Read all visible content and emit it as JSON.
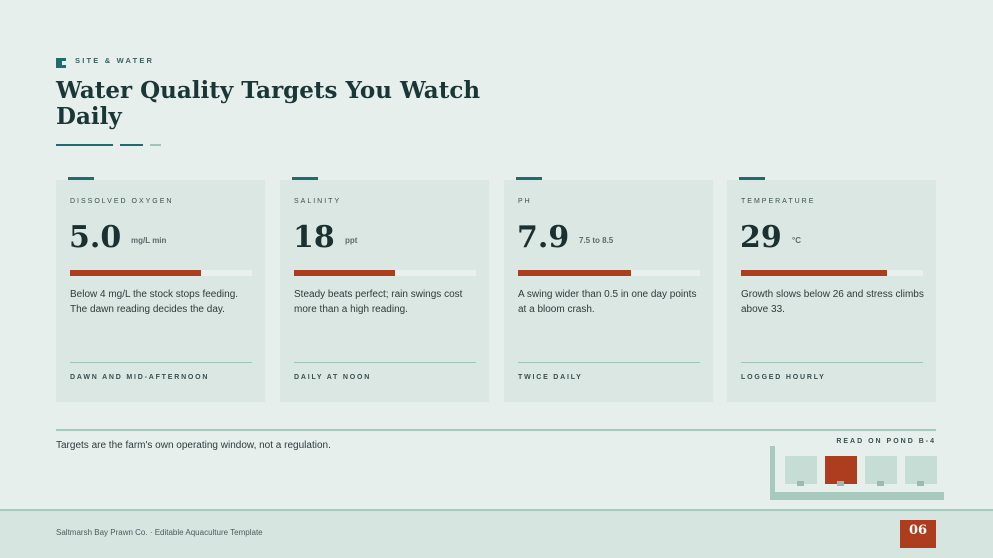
{
  "header": {
    "eyebrow": "SITE & WATER",
    "title": "Water Quality Targets You Watch Daily"
  },
  "cards": [
    {
      "label": "DISSOLVED OXYGEN",
      "value": "5.0",
      "unit": "mg/L min",
      "note": "Below 4 mg/L the stock stops feeding. The dawn reading decides the day.",
      "cadence": "DAWN AND MID-AFTERNOON"
    },
    {
      "label": "SALINITY",
      "value": "18",
      "unit": "ppt",
      "note": "Steady beats perfect; rain swings cost more than a high reading.",
      "cadence": "DAILY AT NOON"
    },
    {
      "label": "PH",
      "value": "7.9",
      "unit": "7.5 to 8.5",
      "note": "A swing wider than 0.5 in one day points at a bloom crash.",
      "cadence": "TWICE DAILY"
    },
    {
      "label": "TEMPERATURE",
      "value": "29",
      "unit": "°C",
      "note": "Growth slows below 26 and stress climbs above 33.",
      "cadence": "LOGGED HOURLY"
    }
  ],
  "footnote": "Targets are the farm's own operating window, not a regulation.",
  "pond_caption": "READ ON POND B-4",
  "footer": {
    "company": "Saltmarsh Bay Prawn Co. · Editable Aquaculture Template",
    "page": "06"
  }
}
